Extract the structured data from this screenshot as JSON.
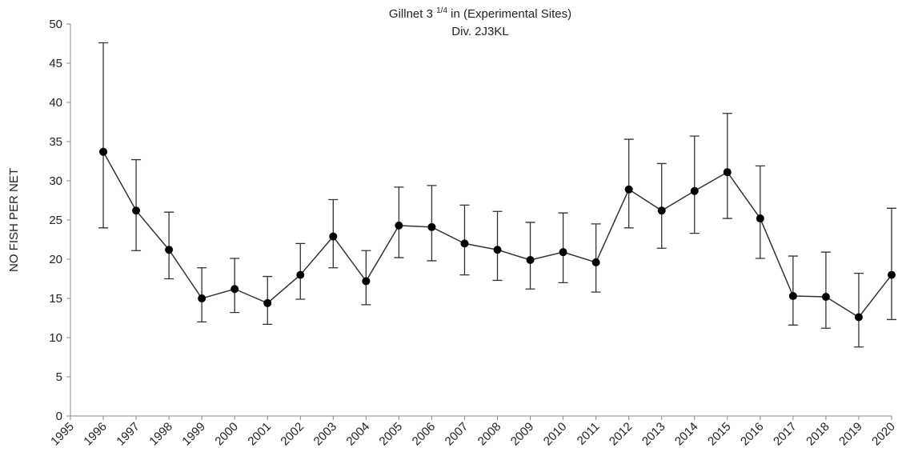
{
  "chart_data": {
    "type": "line",
    "title": [
      "Gillnet 3 ",
      "1/4",
      " in (Experimental Sites)"
    ],
    "subtitle": "Div. 2J3KL",
    "y_label": "NO FISH PER NET",
    "x": [
      1996,
      1997,
      1998,
      1999,
      2000,
      2001,
      2002,
      2003,
      2004,
      2005,
      2006,
      2007,
      2008,
      2009,
      2010,
      2011,
      2012,
      2013,
      2014,
      2015,
      2016,
      2017,
      2018,
      2019,
      2020
    ],
    "values": [
      33.7,
      26.2,
      21.2,
      15.0,
      16.2,
      14.4,
      18.0,
      22.9,
      17.2,
      24.3,
      24.1,
      22.0,
      21.2,
      19.9,
      20.9,
      19.6,
      28.9,
      26.2,
      28.7,
      31.1,
      25.2,
      15.3,
      15.2,
      12.6,
      18.0
    ],
    "upper": [
      47.6,
      32.7,
      26.0,
      18.9,
      20.1,
      17.8,
      22.0,
      27.6,
      21.1,
      29.2,
      29.4,
      26.9,
      26.1,
      24.7,
      25.9,
      24.5,
      35.3,
      32.2,
      35.7,
      38.6,
      31.9,
      20.4,
      20.9,
      18.2,
      26.5
    ],
    "lower": [
      24.0,
      21.1,
      17.5,
      12.0,
      13.2,
      11.7,
      14.9,
      18.9,
      14.2,
      20.2,
      19.8,
      18.0,
      17.3,
      16.2,
      17.0,
      15.8,
      24.0,
      21.4,
      23.3,
      25.2,
      20.1,
      11.6,
      11.2,
      8.8,
      12.3
    ],
    "color": "#000000",
    "xlim": [
      1995,
      2020
    ],
    "xticks": [
      1995,
      1996,
      1997,
      1998,
      1999,
      2000,
      2001,
      2002,
      2003,
      2004,
      2005,
      2006,
      2007,
      2008,
      2009,
      2010,
      2011,
      2012,
      2013,
      2014,
      2015,
      2016,
      2017,
      2018,
      2019,
      2020
    ],
    "ylim": [
      0,
      50
    ],
    "yticks": [
      0,
      5,
      10,
      15,
      20,
      25,
      30,
      35,
      40,
      45,
      50
    ],
    "grid": false
  }
}
